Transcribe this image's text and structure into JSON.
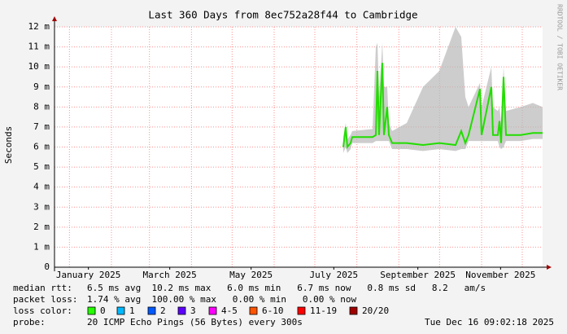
{
  "chart_data": {
    "type": "smokeline",
    "title": "Last 360 Days from 8ec752a28f44 to Cambridge",
    "ylabel": "Seconds",
    "watermark": "RRDTOOL / TOBI OETIKER",
    "ylim": [
      0,
      0.012
    ],
    "yticks": [
      0,
      {
        "value": 0.001,
        "label": "1 m"
      },
      {
        "value": 0.002,
        "label": "2 m"
      },
      {
        "value": 0.003,
        "label": "3 m"
      },
      {
        "value": 0.004,
        "label": "4 m"
      },
      {
        "value": 0.005,
        "label": "5 m"
      },
      {
        "value": 0.006,
        "label": "6 m"
      },
      {
        "value": 0.007,
        "label": "7 m"
      },
      {
        "value": 0.008,
        "label": "8 m"
      },
      {
        "value": 0.009,
        "label": "9 m"
      },
      {
        "value": 0.01,
        "label": "10 m"
      },
      {
        "value": 0.011,
        "label": "11 m"
      },
      {
        "value": 0.012,
        "label": "12 m"
      }
    ],
    "xlim": [
      0,
      360
    ],
    "xticks": [
      {
        "value": 25,
        "label": "January 2025"
      },
      {
        "value": 85,
        "label": "March 2025"
      },
      {
        "value": 145,
        "label": "May 2025"
      },
      {
        "value": 206,
        "label": "July 2025"
      },
      {
        "value": 268,
        "label": "September 2025"
      },
      {
        "value": 329,
        "label": "November 2025"
      }
    ],
    "xgrid": [
      11,
      42,
      70,
      101,
      131,
      162,
      192,
      223,
      254,
      284,
      315,
      345
    ],
    "grid": true,
    "x": [
      213,
      214.8,
      216,
      218.4,
      219.6,
      234.6,
      237,
      238.2,
      239.4,
      241.8,
      243,
      245.4,
      246.6,
      249,
      259.8,
      271.8,
      283.8,
      295.8,
      300,
      303,
      305.4,
      313.8,
      315,
      322.2,
      323.4,
      327,
      328.2,
      329.4,
      331.2,
      333,
      343.8,
      352.8,
      360
    ],
    "smoke": {
      "color": "#b8b8b8",
      "high": [
        0.0065,
        0.0072,
        0.0064,
        0.0066,
        0.0068,
        0.0069,
        0.011,
        0.0112,
        0.0085,
        0.0112,
        0.009,
        0.009,
        0.0072,
        0.0068,
        0.0072,
        0.009,
        0.0098,
        0.012,
        0.0115,
        0.0085,
        0.008,
        0.0092,
        0.008,
        0.01,
        0.008,
        0.0078,
        0.008,
        0.0072,
        0.01,
        0.0078,
        0.008,
        0.0082,
        0.008
      ],
      "low": [
        0.0057,
        0.006,
        0.0057,
        0.0059,
        0.0062,
        0.0062,
        0.0063,
        0.0063,
        0.0063,
        0.0063,
        0.0063,
        0.0063,
        0.0063,
        0.0059,
        0.0059,
        0.0058,
        0.0059,
        0.0058,
        0.0059,
        0.0059,
        0.0063,
        0.0063,
        0.0063,
        0.0063,
        0.0063,
        0.0063,
        0.006,
        0.0059,
        0.006,
        0.0063,
        0.0063,
        0.0064,
        0.0064
      ]
    },
    "series": [
      {
        "name": "median rtt:",
        "color": "#22dd00",
        "values": [
          0.006,
          0.007,
          0.006,
          0.0062,
          0.0065,
          0.0065,
          0.0066,
          0.0098,
          0.0066,
          0.0102,
          0.0066,
          0.008,
          0.0066,
          0.0062,
          0.0062,
          0.0061,
          0.0062,
          0.0061,
          0.0068,
          0.0062,
          0.0066,
          0.0089,
          0.0066,
          0.009,
          0.0066,
          0.0066,
          0.0073,
          0.0062,
          0.0095,
          0.0066,
          0.0066,
          0.0067,
          0.0067
        ]
      }
    ],
    "stats": {
      "median": "6.5 ms avg  10.2 ms max   6.0 ms min   6.7 ms now   0.8 ms sd   8.2   am/s",
      "loss_label": "packet loss:",
      "loss": "1.74 % avg  100.00 % max   0.00 % min   0.00 % now"
    },
    "loss_legend": {
      "label": "loss color:",
      "items": [
        {
          "label": "0",
          "color": "#26ff00"
        },
        {
          "label": "1",
          "color": "#00b8ff"
        },
        {
          "label": "2",
          "color": "#0059ff"
        },
        {
          "label": "3",
          "color": "#5e00ff"
        },
        {
          "label": "4-5",
          "color": "#ff00ff"
        },
        {
          "label": "6-10",
          "color": "#ff5500"
        },
        {
          "label": "11-19",
          "color": "#ff0000"
        },
        {
          "label": "20/20",
          "color": "#a10000"
        }
      ]
    },
    "probe_label": "probe:",
    "probe": "20 ICMP Echo Pings (56 Bytes) every 300s",
    "timestamp": "Tue Dec 16 09:02:18 2025"
  }
}
